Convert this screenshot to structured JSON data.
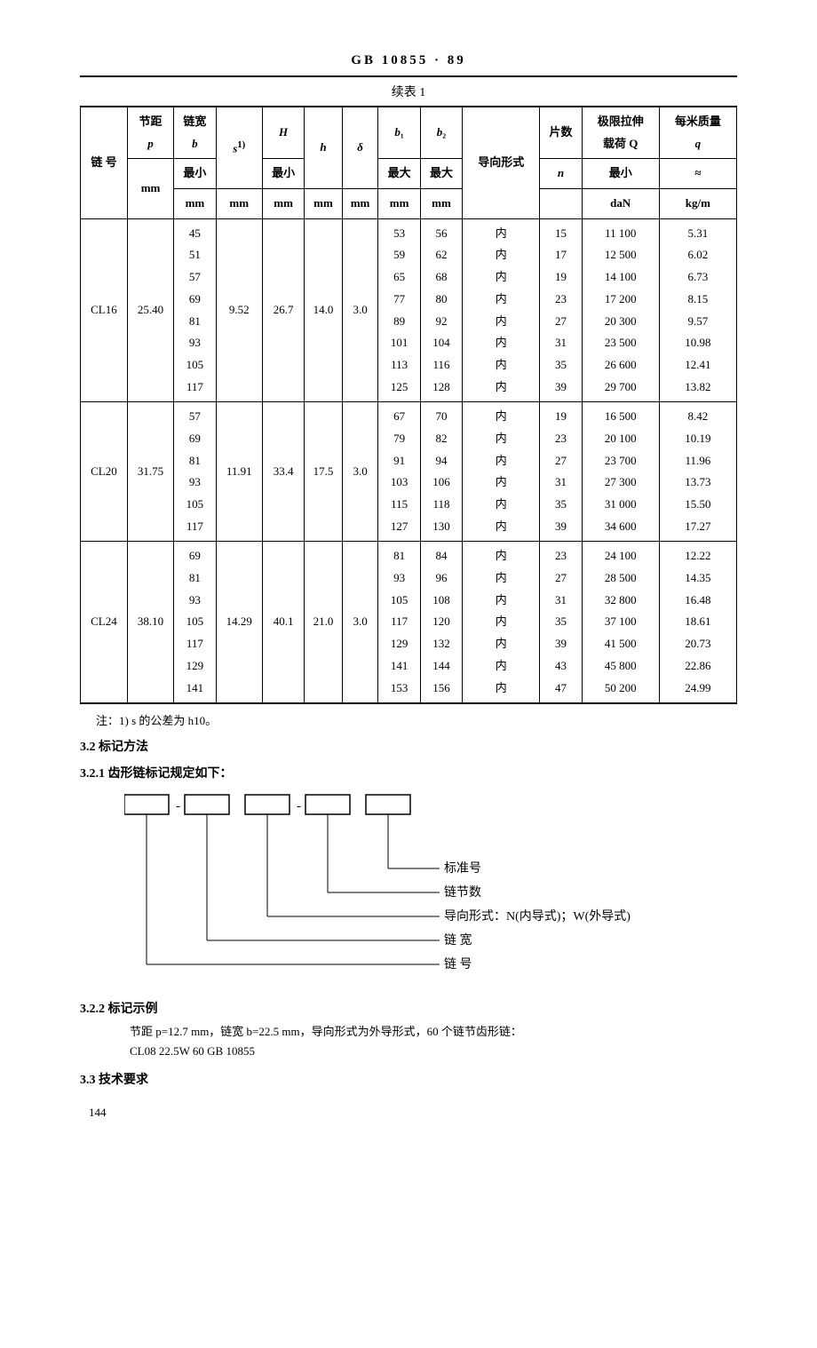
{
  "header": {
    "standard": "GB 10855 · 89"
  },
  "table": {
    "caption": "续表 1",
    "head": {
      "r1": {
        "col_chain_no": "链  号",
        "col_pitch": "节距",
        "col_pitch_sym": "p",
        "col_width": "链宽",
        "col_width_sym": "b",
        "col_s": "s^{1)}",
        "col_H": "H",
        "col_h": "h",
        "col_delta": "δ",
        "col_b1": "b₁",
        "col_b2": "b₂",
        "col_guide": "导向形式",
        "col_plates": "片数",
        "col_load": "极限拉伸",
        "col_load2": "载荷  Q",
        "col_mass": "每米质量",
        "col_mass_sym": "q"
      },
      "r2": {
        "min": "最小",
        "max": "最大",
        "n": "n",
        "approx": "≈",
        "mm": "mm",
        "daN": "daN",
        "kgm": "kg/m"
      }
    },
    "rows": [
      {
        "no": "CL16",
        "p": "25.40",
        "b": "45\n51\n57\n69\n81\n93\n105\n117",
        "s": "9.52",
        "H": "26.7",
        "h": "14.0",
        "delta": "3.0",
        "b1": "53\n59\n65\n77\n89\n101\n113\n125",
        "b2": "56\n62\n68\n80\n92\n104\n116\n128",
        "guide": "内\n内\n内\n内\n内\n内\n内\n内",
        "n": "15\n17\n19\n23\n27\n31\n35\n39",
        "Q": "11 100\n12 500\n14 100\n17 200\n20 300\n23 500\n26 600\n29 700",
        "q": "5.31\n6.02\n6.73\n8.15\n9.57\n10.98\n12.41\n13.82"
      },
      {
        "no": "CL20",
        "p": "31.75",
        "b": "57\n69\n81\n93\n105\n117",
        "s": "11.91",
        "H": "33.4",
        "h": "17.5",
        "delta": "3.0",
        "b1": "67\n79\n91\n103\n115\n127",
        "b2": "70\n82\n94\n106\n118\n130",
        "guide": "内\n内\n内\n内\n内\n内",
        "n": "19\n23\n27\n31\n35\n39",
        "Q": "16 500\n20 100\n23 700\n27 300\n31 000\n34 600",
        "q": "8.42\n10.19\n11.96\n13.73\n15.50\n17.27"
      },
      {
        "no": "CL24",
        "p": "38.10",
        "b": "69\n81\n93\n105\n117\n129\n141",
        "s": "14.29",
        "H": "40.1",
        "h": "21.0",
        "delta": "3.0",
        "b1": "81\n93\n105\n117\n129\n141\n153",
        "b2": "84\n96\n108\n120\n132\n144\n156",
        "guide": "内\n内\n内\n内\n内\n内\n内",
        "n": "23\n27\n31\n35\n39\n43\n47",
        "Q": "24 100\n28 500\n32 800\n37 100\n41 500\n45 800\n50 200",
        "q": "12.22\n14.35\n16.48\n18.61\n20.73\n22.86\n24.99"
      }
    ],
    "note": "注：1) s 的公差为 h10。"
  },
  "sections": {
    "s32": "3.2  标记方法",
    "s321": "3.2.1  齿形链标记规定如下：",
    "s322": "3.2.2  标记示例",
    "s33": "3.3  技术要求"
  },
  "diagram": {
    "labels": {
      "std_no": "标准号",
      "link_count": "链节数",
      "guide_form": "导向形式：N(内导式)；W(外导式)",
      "width": "链  宽",
      "chain_no": "链  号"
    }
  },
  "example": {
    "line1": "节距 p=12.7 mm，链宽 b=22.5 mm，导向形式为外导形式，60 个链节齿形链：",
    "line2": "CL08 22.5W 60   GB 10855"
  },
  "page_number": "144"
}
